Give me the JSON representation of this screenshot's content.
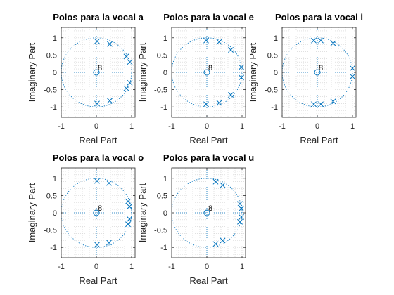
{
  "figure": {
    "background": "#ffffff"
  },
  "style": {
    "marker_color": "#0072BD",
    "grid_color": "#cfcfcf",
    "unit_circle_color": "#0072BD",
    "axes_color": "#262626"
  },
  "chart_data": [
    {
      "type": "scatter",
      "title": "Polos para la vocal a",
      "xlabel": "Real Part",
      "ylabel": "Imaginary Part",
      "xlim": [
        -1,
        1.1
      ],
      "ylim": [
        -1.3,
        1.3
      ],
      "xticks": [
        -1,
        0,
        1
      ],
      "yticks": [
        -1,
        -0.5,
        0,
        0.5,
        1
      ],
      "grid": true,
      "unit_circle": true,
      "zeros": [
        {
          "x": 0,
          "y": 0,
          "multiplicity": "8"
        }
      ],
      "poles": [
        {
          "x": 0.02,
          "y": 0.9
        },
        {
          "x": 0.38,
          "y": 0.82
        },
        {
          "x": 0.85,
          "y": 0.46
        },
        {
          "x": 0.95,
          "y": 0.3
        },
        {
          "x": 0.95,
          "y": -0.3
        },
        {
          "x": 0.85,
          "y": -0.46
        },
        {
          "x": 0.38,
          "y": -0.82
        },
        {
          "x": 0.02,
          "y": -0.9
        }
      ]
    },
    {
      "type": "scatter",
      "title": "Polos para la vocal e",
      "xlabel": "Real Part",
      "ylabel": "Imaginary Part",
      "xlim": [
        -1,
        1.1
      ],
      "ylim": [
        -1.3,
        1.3
      ],
      "xticks": [
        -1,
        0,
        1
      ],
      "yticks": [
        -1,
        -0.5,
        0,
        0.5,
        1
      ],
      "grid": true,
      "unit_circle": true,
      "zeros": [
        {
          "x": 0,
          "y": 0,
          "multiplicity": "8"
        }
      ],
      "poles": [
        {
          "x": -0.02,
          "y": 0.92
        },
        {
          "x": 0.35,
          "y": 0.88
        },
        {
          "x": 0.68,
          "y": 0.65
        },
        {
          "x": 0.98,
          "y": 0.15
        },
        {
          "x": 0.98,
          "y": -0.15
        },
        {
          "x": 0.68,
          "y": -0.65
        },
        {
          "x": 0.35,
          "y": -0.88
        },
        {
          "x": -0.02,
          "y": -0.92
        }
      ]
    },
    {
      "type": "scatter",
      "title": "Polos para la vocal i",
      "xlabel": "Real Part",
      "ylabel": "Imaginary Part",
      "xlim": [
        -1,
        1.1
      ],
      "ylim": [
        -1.3,
        1.3
      ],
      "xticks": [
        -1,
        0,
        1
      ],
      "yticks": [
        -1,
        -0.5,
        0,
        0.5,
        1
      ],
      "grid": true,
      "unit_circle": true,
      "zeros": [
        {
          "x": 0,
          "y": 0,
          "multiplicity": "8"
        }
      ],
      "poles": [
        {
          "x": -0.1,
          "y": 0.92
        },
        {
          "x": 0.1,
          "y": 0.92
        },
        {
          "x": 0.45,
          "y": 0.84
        },
        {
          "x": 1.0,
          "y": 0.12
        },
        {
          "x": 1.0,
          "y": -0.12
        },
        {
          "x": 0.45,
          "y": -0.84
        },
        {
          "x": 0.1,
          "y": -0.92
        },
        {
          "x": -0.1,
          "y": -0.92
        }
      ]
    },
    {
      "type": "scatter",
      "title": "Polos para la vocal o",
      "xlabel": "Real Part",
      "ylabel": "Imaginary Part",
      "xlim": [
        -1,
        1.1
      ],
      "ylim": [
        -1.3,
        1.3
      ],
      "xticks": [
        -1,
        0,
        1
      ],
      "yticks": [
        -1,
        -0.5,
        0,
        0.5,
        1
      ],
      "grid": true,
      "unit_circle": true,
      "zeros": [
        {
          "x": 0,
          "y": 0,
          "multiplicity": "8"
        }
      ],
      "poles": [
        {
          "x": 0.02,
          "y": 0.92
        },
        {
          "x": 0.36,
          "y": 0.86
        },
        {
          "x": 0.9,
          "y": 0.33
        },
        {
          "x": 0.94,
          "y": 0.18
        },
        {
          "x": 0.94,
          "y": -0.18
        },
        {
          "x": 0.9,
          "y": -0.33
        },
        {
          "x": 0.36,
          "y": -0.86
        },
        {
          "x": 0.02,
          "y": -0.92
        }
      ]
    },
    {
      "type": "scatter",
      "title": "Polos para la vocal u",
      "xlabel": "Real Part",
      "ylabel": "Imaginary Part",
      "xlim": [
        -1,
        1.1
      ],
      "ylim": [
        -1.3,
        1.3
      ],
      "xticks": [
        -1,
        0,
        1
      ],
      "yticks": [
        -1,
        -0.5,
        0,
        0.5,
        1
      ],
      "grid": true,
      "unit_circle": true,
      "zeros": [
        {
          "x": 0,
          "y": 0,
          "multiplicity": "8"
        }
      ],
      "poles": [
        {
          "x": 0.25,
          "y": 0.9
        },
        {
          "x": 0.45,
          "y": 0.8
        },
        {
          "x": 0.94,
          "y": 0.26
        },
        {
          "x": 0.98,
          "y": 0.12
        },
        {
          "x": 0.98,
          "y": -0.12
        },
        {
          "x": 0.94,
          "y": -0.26
        },
        {
          "x": 0.45,
          "y": -0.8
        },
        {
          "x": 0.25,
          "y": -0.9
        }
      ]
    }
  ]
}
